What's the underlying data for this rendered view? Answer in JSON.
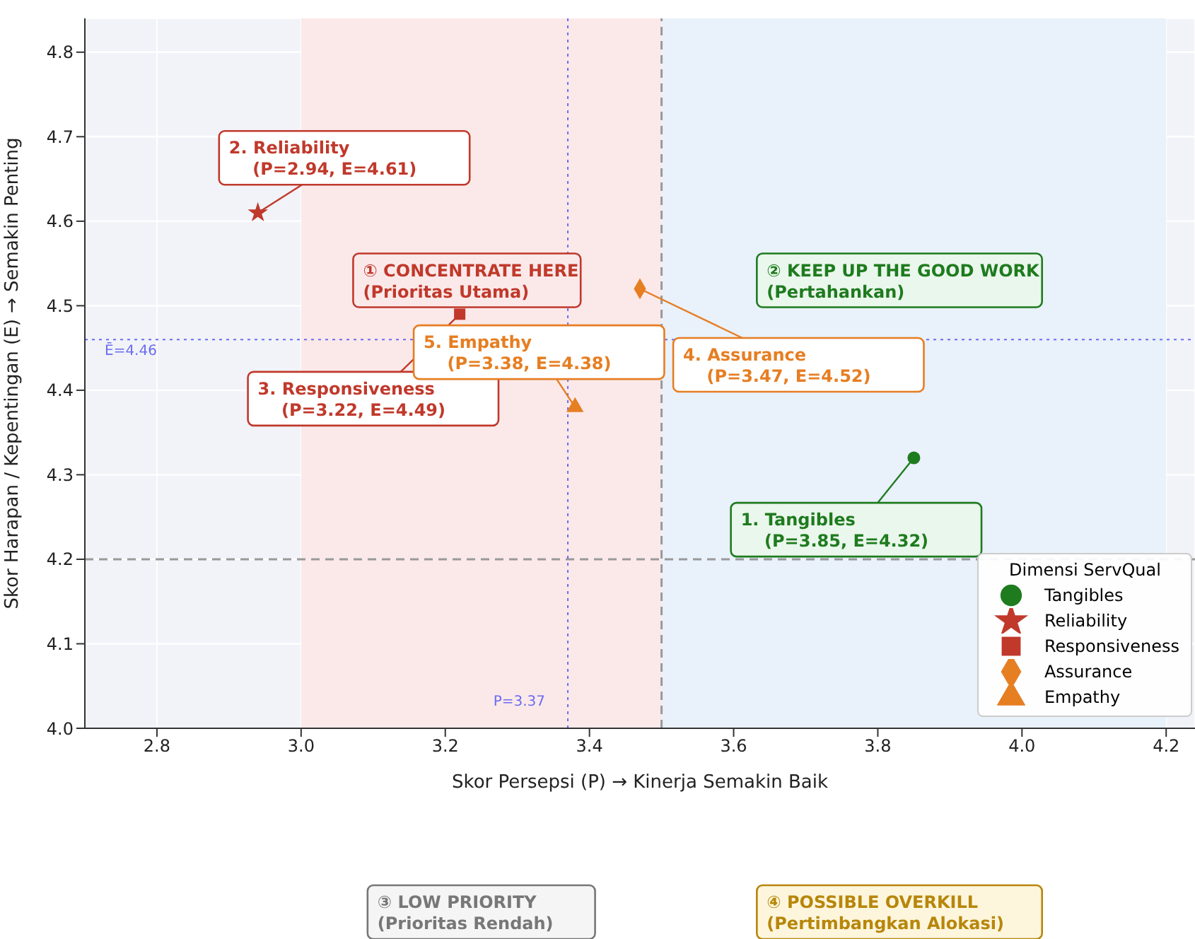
{
  "chart_data": {
    "type": "scatter",
    "xlabel": "Skor Persepsi (P)  →  Kinerja Semakin Baik",
    "ylabel": "Skor Harapan / Kepentingan (E)  →  Semakin Penting",
    "legend_title": "Dimensi ServQual",
    "legend": "bottom right",
    "grid": true,
    "xlim": [
      2.7,
      4.24
    ],
    "xticks": [
      {
        "value": 2.8,
        "label": "2.8"
      },
      {
        "value": 3.0,
        "label": "3.0"
      },
      {
        "value": 3.2,
        "label": "3.2"
      },
      {
        "value": 3.4,
        "label": "3.4"
      },
      {
        "value": 3.6,
        "label": "3.6"
      },
      {
        "value": 3.8,
        "label": "3.8"
      },
      {
        "value": 4.0,
        "label": "4.0"
      },
      {
        "value": 4.2,
        "label": "4.2"
      }
    ],
    "ylim": [
      4.0,
      4.84
    ],
    "yticks": [
      {
        "value": 4.0,
        "label": "4.0"
      },
      {
        "value": 4.1,
        "label": "4.1"
      },
      {
        "value": 4.2,
        "label": "4.2"
      },
      {
        "value": 4.3,
        "label": "4.3"
      },
      {
        "value": 4.4,
        "label": "4.4"
      },
      {
        "value": 4.5,
        "label": "4.5"
      },
      {
        "value": 4.6,
        "label": "4.6"
      },
      {
        "value": 4.7,
        "label": "4.7"
      },
      {
        "value": 4.8,
        "label": "4.8"
      }
    ],
    "series": [
      {
        "name": "Tangibles",
        "color": "#1e7b1e",
        "marker": "circle",
        "x": [
          3.85
        ],
        "values": [
          4.32
        ]
      },
      {
        "name": "Reliability",
        "color": "#c0392b",
        "marker": "star",
        "x": [
          2.94
        ],
        "values": [
          4.61
        ]
      },
      {
        "name": "Responsiveness",
        "color": "#c0392b",
        "marker": "square",
        "x": [
          3.22
        ],
        "values": [
          4.49
        ]
      },
      {
        "name": "Assurance",
        "color": "#e67e22",
        "marker": "diamond",
        "x": [
          3.47
        ],
        "values": [
          4.52
        ]
      },
      {
        "name": "Empathy",
        "color": "#e67e22",
        "marker": "triangle",
        "x": [
          3.38
        ],
        "values": [
          4.38
        ]
      }
    ],
    "ref_lines": [
      {
        "axis": "x",
        "value": 3.5,
        "color": "#999999",
        "line_style": "dashed"
      },
      {
        "axis": "y",
        "value": 4.2,
        "color": "#999999",
        "line_style": "dashed"
      },
      {
        "axis": "x",
        "value": 3.37,
        "label": "P=3.37",
        "color": "#6b6bf0",
        "line_style": "dotted"
      },
      {
        "axis": "y",
        "value": 4.46,
        "label": "Ē=4.46",
        "color": "#6b6bf0",
        "line_style": "dotted"
      }
    ],
    "bands": [
      {
        "axis": "x",
        "from": 3.0,
        "to": 3.5,
        "color": "#fbe9ea"
      },
      {
        "axis": "x",
        "from": 3.5,
        "to": 4.2,
        "color": "#e9f1fa"
      }
    ],
    "annotations": [
      {
        "text": "1. Tangibles\n    (P=3.85, E=4.32)",
        "x": 3.85,
        "y": 4.32
      },
      {
        "text": "2. Reliability\n    (P=2.94, E=4.61)",
        "x": 2.94,
        "y": 4.61
      },
      {
        "text": "3. Responsiveness\n    (P=3.22, E=4.49)",
        "x": 3.22,
        "y": 4.49
      },
      {
        "text": "4. Assurance\n    (P=3.47, E=4.52)",
        "x": 3.47,
        "y": 4.52
      },
      {
        "text": "5. Empathy\n    (P=3.38, E=4.38)",
        "x": 3.38,
        "y": 4.38
      },
      "① CONCENTRATE HERE\n(Prioritas Utama)",
      "② KEEP UP THE GOOD WORK\n(Pertahankan)",
      "③ LOW PRIORITY\n(Prioritas Rendah)",
      "④ POSSIBLE OVERKILL\n(Pertimbangkan Alokasi)"
    ]
  }
}
